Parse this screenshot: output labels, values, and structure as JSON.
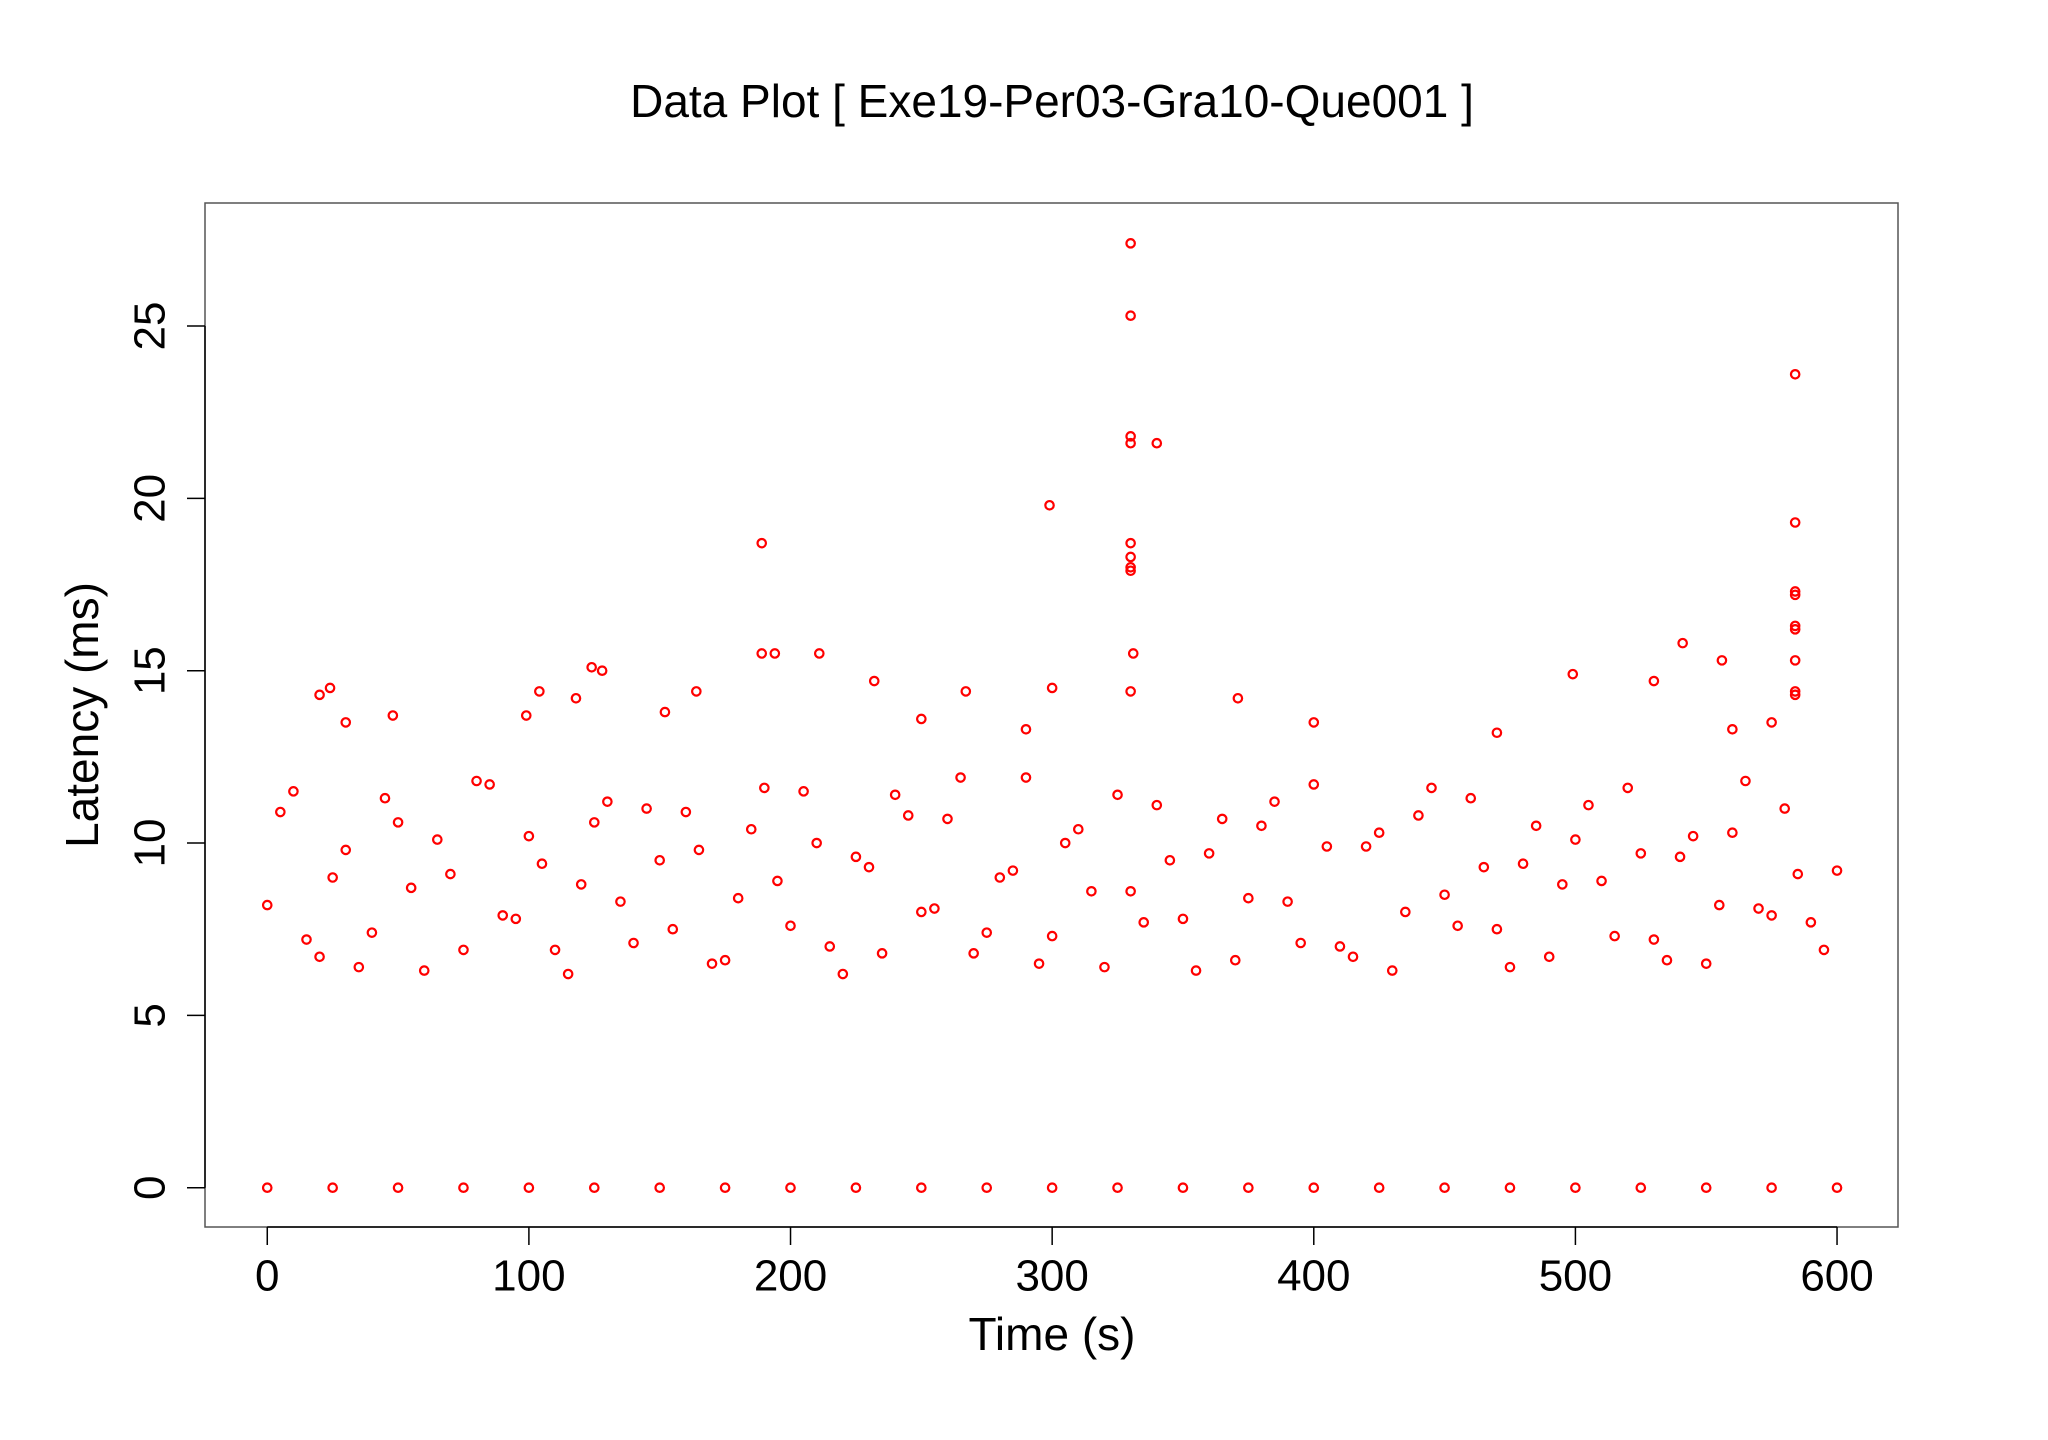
{
  "chart_data": {
    "type": "scatter",
    "title": "Data Plot [ Exe19-Per03-Gra10-Que001 ]",
    "x_label": "Time (s)",
    "y_label": "Latency (ms)",
    "xlim": [
      -23.8,
      623.3
    ],
    "ylim": [
      -1.14,
      28.57
    ],
    "xticks": [
      0,
      100,
      200,
      300,
      400,
      500,
      600
    ],
    "yticks": [
      0,
      5,
      10,
      15,
      20,
      25
    ],
    "grid": false,
    "series": [
      {
        "color": "#ff0000",
        "x": [
          0,
          10,
          20,
          30,
          40,
          50,
          60,
          70,
          80,
          90,
          100,
          110,
          120,
          130,
          140,
          150,
          160,
          170,
          180,
          190,
          200,
          210,
          220,
          230,
          240,
          250,
          260,
          270,
          280,
          290,
          300,
          310,
          320,
          330,
          340,
          350,
          360,
          370,
          380,
          390,
          400,
          410,
          420,
          430,
          440,
          450,
          460,
          470,
          480,
          490,
          500,
          510,
          520,
          530,
          540,
          550,
          560,
          570,
          580,
          590,
          600,
          5,
          15,
          25,
          35,
          45,
          55,
          65,
          75,
          85,
          95,
          105,
          115,
          125,
          135,
          145,
          155,
          165,
          175,
          185,
          195,
          205,
          215,
          225,
          235,
          245,
          255,
          265,
          275,
          285,
          295,
          305,
          315,
          325,
          335,
          345,
          355,
          365,
          375,
          385,
          395,
          405,
          415,
          425,
          435,
          445,
          455,
          465,
          475,
          485,
          495,
          505,
          515,
          525,
          535,
          545,
          555,
          565,
          575,
          585,
          595,
          330,
          330,
          330,
          330,
          340,
          299,
          330,
          330,
          330,
          330,
          331,
          330,
          189,
          189,
          194,
          211,
          584,
          584,
          584,
          584,
          584,
          584,
          584,
          584,
          584,
          541,
          556,
          499,
          124,
          128,
          104,
          20,
          24,
          164,
          232,
          267,
          300,
          371,
          530,
          30,
          48,
          99,
          118,
          152,
          400,
          470,
          250,
          290,
          560,
          575,
          0,
          25,
          50,
          75,
          100,
          125,
          150,
          175,
          200,
          225,
          250,
          275,
          300,
          325,
          350,
          375,
          400,
          425,
          450,
          475,
          500,
          525,
          550,
          575,
          600
        ],
        "values": [
          8.2,
          11.5,
          6.7,
          9.8,
          7.4,
          10.6,
          6.3,
          9.1,
          11.8,
          7.9,
          10.2,
          6.9,
          8.8,
          11.2,
          7.1,
          9.5,
          10.9,
          6.5,
          8.4,
          11.6,
          7.6,
          10.0,
          6.2,
          9.3,
          11.4,
          8.0,
          10.7,
          6.8,
          9.0,
          11.9,
          7.3,
          10.4,
          6.4,
          8.6,
          11.1,
          7.8,
          9.7,
          6.6,
          10.5,
          8.3,
          11.7,
          7.0,
          9.9,
          6.3,
          10.8,
          8.5,
          11.3,
          7.5,
          9.4,
          6.7,
          10.1,
          8.9,
          11.6,
          7.2,
          9.6,
          6.5,
          10.3,
          8.1,
          11.0,
          7.7,
          9.2,
          10.9,
          7.2,
          9.0,
          6.4,
          11.3,
          8.7,
          10.1,
          6.9,
          11.7,
          7.8,
          9.4,
          6.2,
          10.6,
          8.3,
          11.0,
          7.5,
          9.8,
          6.6,
          10.4,
          8.9,
          11.5,
          7.0,
          9.6,
          6.8,
          10.8,
          8.1,
          11.9,
          7.4,
          9.2,
          6.5,
          10.0,
          8.6,
          11.4,
          7.7,
          9.5,
          6.3,
          10.7,
          8.4,
          11.2,
          7.1,
          9.9,
          6.7,
          10.3,
          8.0,
          11.6,
          7.6,
          9.3,
          6.4,
          10.5,
          8.8,
          11.1,
          7.3,
          9.7,
          6.6,
          10.2,
          8.2,
          11.8,
          7.9,
          9.1,
          6.9,
          27.4,
          25.3,
          21.8,
          21.6,
          21.6,
          19.8,
          18.7,
          18.3,
          18.0,
          17.9,
          15.5,
          14.4,
          18.7,
          15.5,
          15.5,
          15.5,
          23.6,
          19.3,
          17.3,
          17.2,
          16.3,
          16.2,
          15.3,
          14.4,
          14.3,
          15.8,
          15.3,
          14.9,
          15.1,
          15.0,
          14.4,
          14.3,
          14.5,
          14.4,
          14.7,
          14.4,
          14.5,
          14.2,
          14.7,
          13.5,
          13.7,
          13.7,
          14.2,
          13.8,
          13.5,
          13.2,
          13.6,
          13.3,
          13.3,
          13.5,
          0,
          0,
          0,
          0,
          0,
          0,
          0,
          0,
          0,
          0,
          0,
          0,
          0,
          0,
          0,
          0,
          0,
          0,
          0,
          0,
          0,
          0,
          0,
          0,
          0
        ]
      }
    ]
  }
}
